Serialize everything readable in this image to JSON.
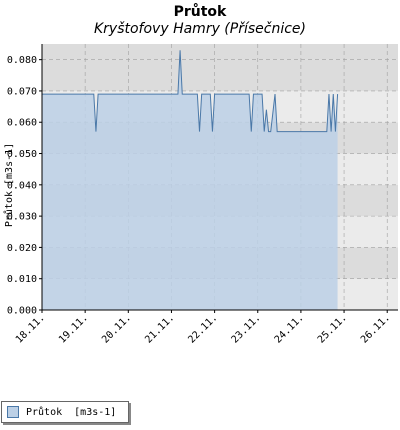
{
  "chart_data": {
    "type": "area",
    "title": "Průtok",
    "subtitle": "Kryštofovy Hamry (Přísečnice)",
    "ylabel": "Průtok [m3s-1]",
    "xlabel": "",
    "ylim": [
      0.0,
      0.085
    ],
    "y_ticks": [
      "0.000",
      "0.010",
      "0.020",
      "0.030",
      "0.040",
      "0.050",
      "0.060",
      "0.070",
      "0.080"
    ],
    "x_range": [
      18.0,
      26.25
    ],
    "x_ticks": [
      {
        "value": 18,
        "label": "18.11."
      },
      {
        "value": 19,
        "label": "19.11."
      },
      {
        "value": 20,
        "label": "20.11."
      },
      {
        "value": 21,
        "label": "21.11."
      },
      {
        "value": 22,
        "label": "22.11."
      },
      {
        "value": 23,
        "label": "23.11."
      },
      {
        "value": 24,
        "label": "24.11."
      },
      {
        "value": 25,
        "label": "25.11."
      },
      {
        "value": 26,
        "label": "26.11."
      }
    ],
    "grid": true,
    "legend_position": "bottom-left",
    "series": [
      {
        "name": "Průtok  [m3s-1]",
        "color": "#4a78a8",
        "fill": "#bcd0e6",
        "x": [
          18.0,
          19.2,
          19.25,
          19.3,
          19.35,
          19.4,
          21.0,
          21.15,
          21.2,
          21.25,
          21.3,
          21.4,
          21.5,
          21.6,
          21.65,
          21.7,
          21.75,
          21.8,
          21.9,
          21.95,
          22.0,
          22.05,
          22.1,
          22.8,
          22.85,
          22.9,
          22.95,
          23.0,
          23.1,
          23.15,
          23.2,
          23.25,
          23.3,
          23.4,
          23.45,
          23.5,
          24.6,
          24.65,
          24.7,
          24.75,
          24.8,
          24.85
        ],
        "y": [
          0.069,
          0.069,
          0.057,
          0.069,
          0.069,
          0.069,
          0.069,
          0.069,
          0.083,
          0.069,
          0.069,
          0.069,
          0.069,
          0.069,
          0.057,
          0.069,
          0.069,
          0.069,
          0.069,
          0.057,
          0.069,
          0.069,
          0.069,
          0.069,
          0.057,
          0.069,
          0.069,
          0.069,
          0.069,
          0.057,
          0.064,
          0.057,
          0.057,
          0.069,
          0.057,
          0.057,
          0.057,
          0.069,
          0.057,
          0.069,
          0.057,
          0.069
        ]
      }
    ]
  },
  "colors": {
    "plot_band_dark": "#dcdcdc",
    "plot_band_light": "#ebebeb",
    "grid": "#a0a0a0",
    "series_line": "#4a78a8",
    "series_fill": "#bcd0e6"
  }
}
